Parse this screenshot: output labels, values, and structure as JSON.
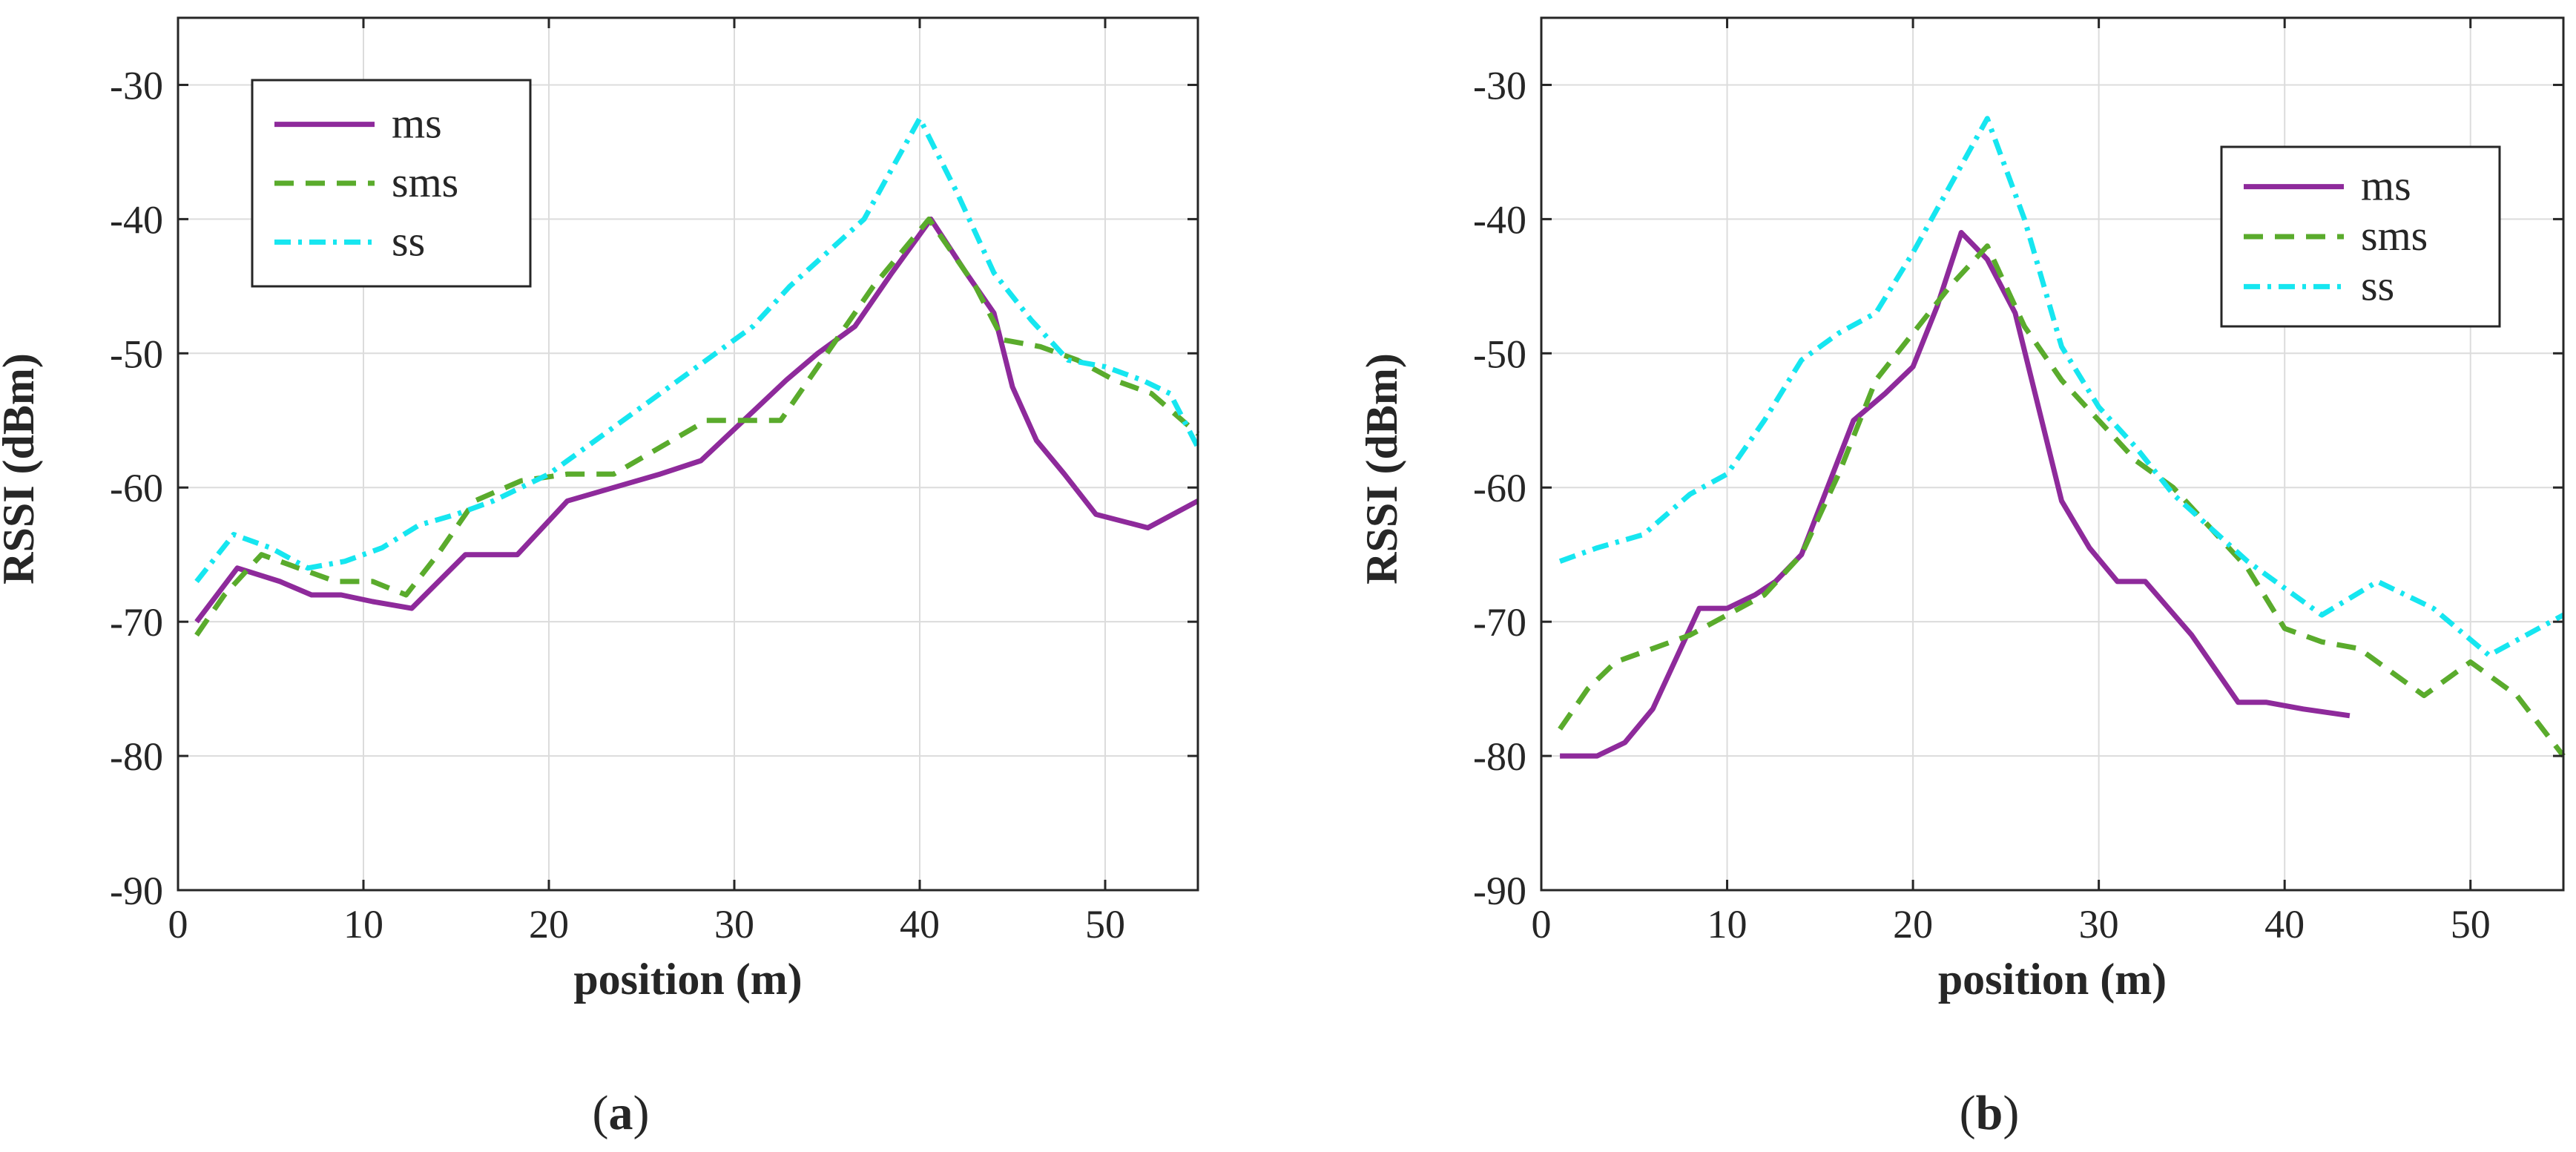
{
  "chart_data": [
    {
      "type": "line",
      "panel_label": "(a)",
      "panel_letter": "a",
      "xlabel": "position (m)",
      "ylabel": "RSSI (dBm)",
      "xlim": [
        0,
        55
      ],
      "ylim": [
        -90,
        -25
      ],
      "xticks": [
        0,
        10,
        20,
        30,
        40,
        50
      ],
      "yticks": [
        -90,
        -80,
        -70,
        -60,
        -50,
        -40,
        -30
      ],
      "grid": true,
      "legend_position": "top-left",
      "series": [
        {
          "name": "ms",
          "color": "#8e2a9b",
          "dash": "solid",
          "x": [
            1,
            3.2,
            5.5,
            7.2,
            8.8,
            10.5,
            12.6,
            15.5,
            18.3,
            21,
            23.5,
            26,
            28.2,
            30.5,
            32.8,
            34.5,
            36.5,
            38.5,
            40.6,
            42.5,
            44,
            45,
            46.3,
            47.8,
            49.5,
            52.3,
            55
          ],
          "values": [
            -70,
            -66,
            -67,
            -68,
            -68,
            -68.5,
            -69,
            -65,
            -65,
            -61,
            -60,
            -59,
            -58,
            -55,
            -52,
            -50,
            -48,
            -44,
            -40,
            -44,
            -47,
            -52.5,
            -56.5,
            -59,
            -62,
            -63,
            -61
          ]
        },
        {
          "name": "sms",
          "color": "#5aab2c",
          "dash": "dashed",
          "x": [
            1,
            2.5,
            4.5,
            6.5,
            8.5,
            10.5,
            12.3,
            14,
            16,
            18.5,
            21,
            23.5,
            26,
            28.5,
            31,
            32.5,
            35,
            37.5,
            40.5,
            43,
            44.5,
            46.5,
            48.5,
            50.5,
            52.5,
            55
          ],
          "values": [
            -71,
            -68,
            -65,
            -66,
            -67,
            -67,
            -68,
            -65,
            -61,
            -59.5,
            -59,
            -59,
            -57,
            -55,
            -55,
            -55,
            -50,
            -45,
            -40,
            -45,
            -49,
            -49.5,
            -50.5,
            -52,
            -53,
            -56
          ]
        },
        {
          "name": "ss",
          "color": "#16e6f0",
          "dash": "dashdot",
          "x": [
            1,
            3,
            5,
            7,
            9,
            11,
            13,
            15,
            17,
            20,
            23,
            26,
            29,
            31,
            33,
            35,
            37,
            40,
            42,
            44,
            46,
            48,
            50,
            52,
            53.5,
            55
          ],
          "values": [
            -67,
            -63.5,
            -64.5,
            -66,
            -65.5,
            -64.5,
            -62.8,
            -62,
            -61,
            -59,
            -56,
            -53,
            -50,
            -48,
            -45,
            -42.5,
            -40,
            -32.5,
            -38,
            -44,
            -47.5,
            -50.5,
            -51,
            -52,
            -53,
            -57
          ]
        }
      ],
      "legend": [
        "ms",
        "sms",
        "ss"
      ]
    },
    {
      "type": "line",
      "panel_label": "(b)",
      "panel_letter": "b",
      "xlabel": "position (m)",
      "ylabel": "RSSI (dBm)",
      "xlim": [
        0,
        55
      ],
      "ylim": [
        -90,
        -25
      ],
      "xticks": [
        0,
        10,
        20,
        30,
        40,
        50
      ],
      "yticks": [
        -90,
        -80,
        -70,
        -60,
        -50,
        -40,
        -30
      ],
      "grid": true,
      "legend_position": "top-right",
      "series": [
        {
          "name": "ms",
          "color": "#8e2a9b",
          "dash": "solid",
          "x": [
            1,
            3,
            4.5,
            6,
            8.5,
            10,
            11.5,
            12.6,
            14,
            16.8,
            18.5,
            20,
            21.3,
            22.6,
            24,
            25.5,
            28,
            29.5,
            31,
            32.5,
            35,
            37.5,
            39,
            41,
            43.5
          ],
          "values": [
            -80,
            -80,
            -79,
            -76.5,
            -69,
            -69,
            -68,
            -67,
            -65,
            -55,
            -53,
            -51,
            -46.5,
            -41,
            -43,
            -47,
            -61,
            -64.5,
            -67,
            -67,
            -71,
            -76,
            -76,
            -76.5,
            -77
          ]
        },
        {
          "name": "sms",
          "color": "#5aab2c",
          "dash": "dashed",
          "x": [
            1,
            2.5,
            4,
            6,
            8,
            10,
            12,
            14,
            16,
            18,
            20,
            22,
            24,
            26,
            28,
            30,
            32,
            34,
            36,
            38,
            40,
            42,
            44,
            47.5,
            50,
            52.5,
            55
          ],
          "values": [
            -78,
            -75,
            -73,
            -72,
            -71,
            -69.5,
            -68,
            -65,
            -59,
            -52,
            -48.5,
            -45,
            -42,
            -48,
            -52,
            -55,
            -58,
            -60,
            -63,
            -66,
            -70.5,
            -71.5,
            -72,
            -75.5,
            -73,
            -75.5,
            -80
          ]
        },
        {
          "name": "ss",
          "color": "#16e6f0",
          "dash": "dashdot",
          "x": [
            1,
            3,
            5.5,
            8,
            10,
            12,
            14,
            16,
            18,
            20,
            22,
            24,
            26,
            28,
            30,
            32,
            34,
            36,
            38,
            40,
            42,
            45,
            48,
            51,
            53,
            55
          ],
          "values": [
            -65.5,
            -64.5,
            -63.5,
            -60.5,
            -59,
            -55,
            -50.5,
            -48.5,
            -47,
            -42.5,
            -37.5,
            -32.5,
            -40,
            -49.5,
            -54,
            -57,
            -60.5,
            -63,
            -65.5,
            -67.5,
            -69.5,
            -67,
            -69,
            -72.5,
            -71,
            -69.5
          ]
        }
      ],
      "legend": [
        "ms",
        "sms",
        "ss"
      ]
    }
  ]
}
